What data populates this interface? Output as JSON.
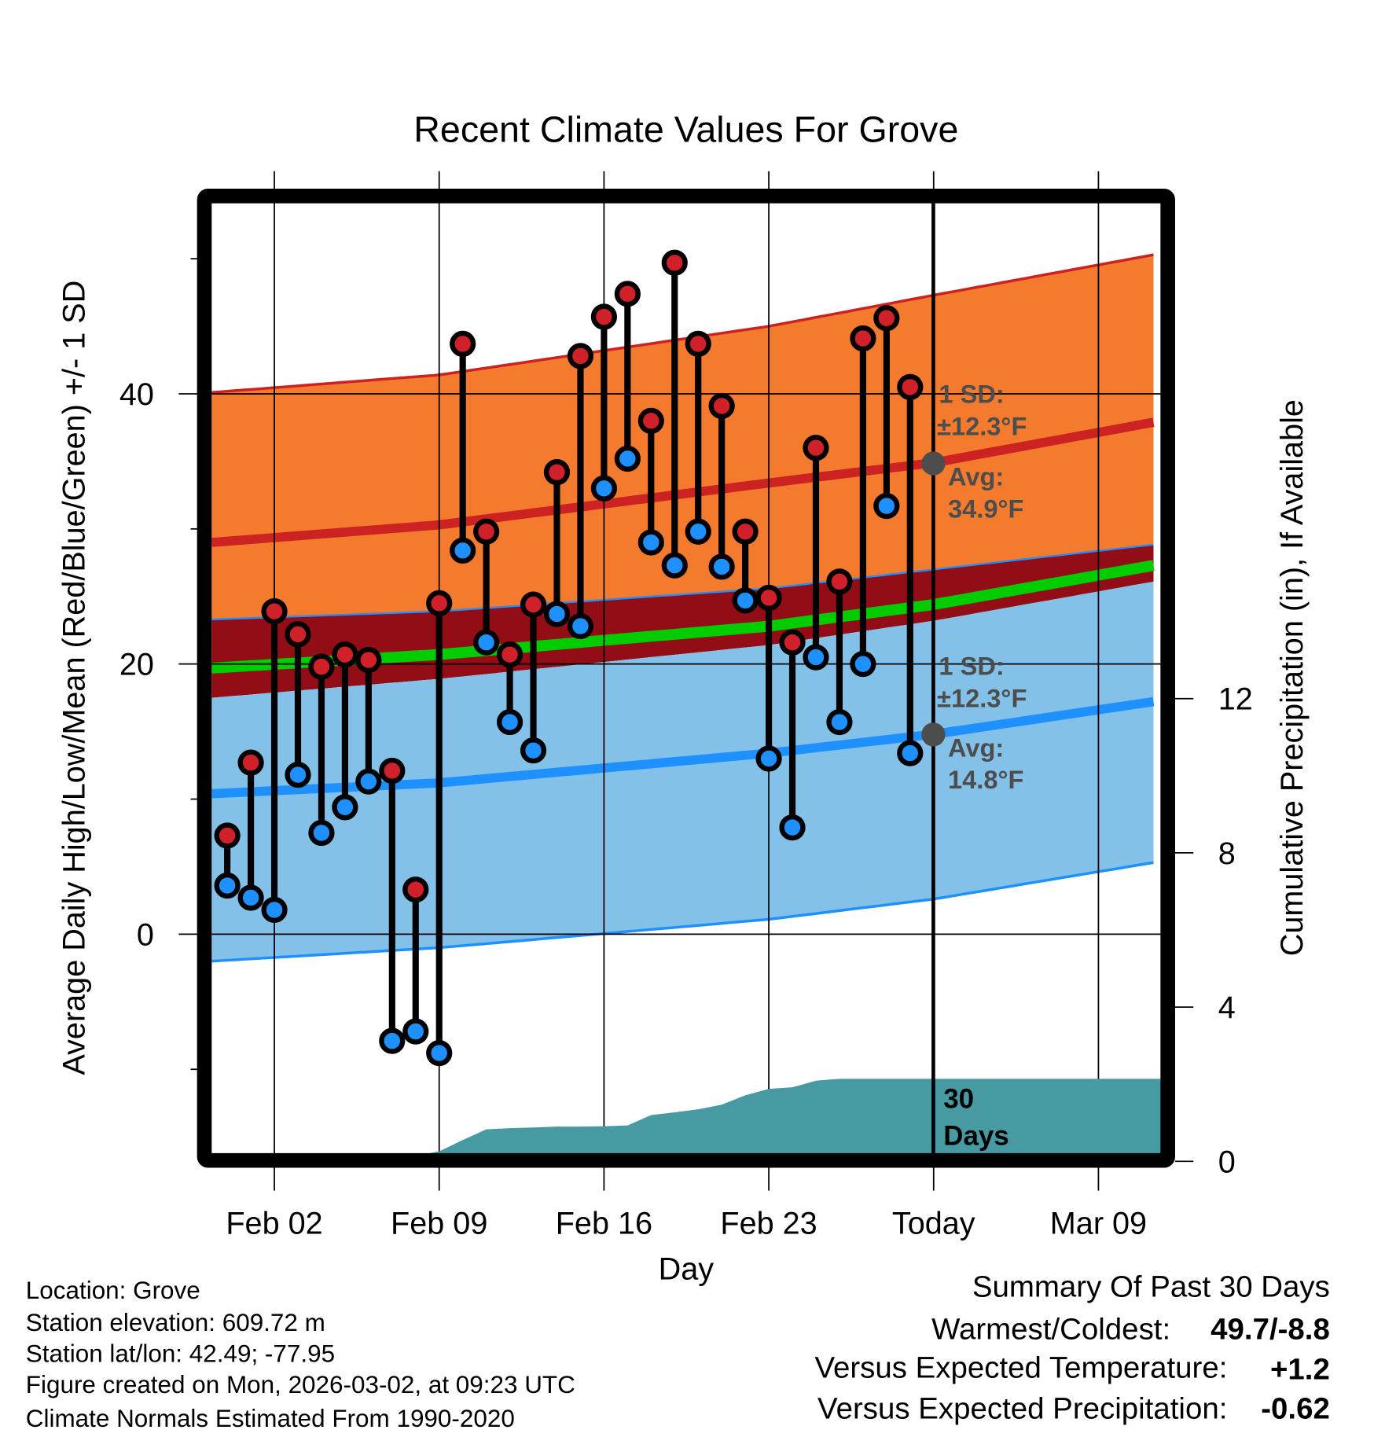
{
  "chart_data": {
    "type": "line",
    "title": "Recent Climate Values For Grove",
    "xlabel": "Day",
    "ylabel": "Average Daily High/Low/Mean (Red/Blue/Green) +/- 1 SD",
    "y2label": "Cumulative Precipitation (in), If Available",
    "day_zero": "Jan 31",
    "xlim_days": [
      -0.66,
      39.67
    ],
    "ylim": [
      -16.3,
      54.1
    ],
    "y2lim": [
      0,
      14.5
    ],
    "grid": true,
    "xticks": [
      {
        "label": "Feb 02",
        "day": 2
      },
      {
        "label": "Feb 09",
        "day": 9
      },
      {
        "label": "Feb 16",
        "day": 16
      },
      {
        "label": "Feb 23",
        "day": 23
      },
      {
        "label": "Today",
        "day": 30
      },
      {
        "label": "Mar 09",
        "day": 37
      }
    ],
    "yticks": [
      0,
      20,
      40
    ],
    "yminor": [
      -10,
      10,
      30,
      50
    ],
    "y2ticks": [
      0,
      4,
      8,
      12
    ],
    "today_day": 30,
    "observed": {
      "days": [
        0,
        1,
        2,
        3,
        4,
        5,
        6,
        7,
        8,
        9,
        10,
        11,
        12,
        13,
        14,
        15,
        16,
        17,
        18,
        19,
        20,
        21,
        22,
        23,
        24,
        25,
        26,
        27,
        28,
        29
      ],
      "high": [
        7.3,
        12.7,
        23.9,
        22.2,
        19.8,
        20.7,
        20.3,
        12.1,
        3.3,
        24.5,
        43.7,
        29.8,
        20.7,
        24.4,
        34.2,
        42.8,
        45.7,
        47.4,
        38.0,
        49.7,
        43.7,
        39.1,
        29.8,
        24.9,
        21.6,
        36.0,
        26.1,
        44.1,
        45.6,
        40.5
      ],
      "low": [
        3.6,
        2.7,
        1.8,
        11.8,
        7.5,
        9.4,
        11.3,
        -7.9,
        -7.2,
        -8.8,
        28.4,
        21.6,
        15.7,
        13.6,
        23.7,
        22.8,
        33.0,
        35.2,
        29.0,
        27.3,
        29.8,
        27.2,
        24.7,
        13.0,
        7.9,
        20.5,
        15.7,
        20.0,
        31.7,
        13.4
      ]
    },
    "normals": {
      "days": [
        -0.66,
        9,
        23,
        30,
        39.67
      ],
      "high_plus_sd": [
        40.1,
        41.4,
        45.0,
        47.3,
        50.4
      ],
      "high_mean": [
        29.0,
        30.3,
        33.4,
        34.9,
        38.0
      ],
      "high_minus_sd": [
        23.3,
        23.9,
        25.6,
        27.0,
        28.9
      ],
      "mean": [
        19.7,
        20.7,
        22.8,
        24.4,
        27.4
      ],
      "low_plus_sd": [
        17.5,
        18.9,
        21.4,
        23.2,
        26.2
      ],
      "low_mean": [
        10.4,
        11.2,
        13.4,
        14.8,
        17.3
      ],
      "low_minus_sd": [
        -2.0,
        -1.0,
        1.1,
        2.6,
        5.4
      ]
    },
    "precip_cumulative": {
      "days": [
        -0.66,
        0,
        1,
        2,
        3,
        4,
        5,
        6,
        7,
        8,
        9,
        10,
        11,
        12,
        13,
        14,
        15,
        16,
        17,
        18,
        19,
        20,
        21,
        22,
        23,
        24,
        25,
        26,
        27,
        28,
        29,
        30,
        39.67
      ],
      "values": [
        0,
        0,
        0,
        0,
        0,
        0,
        0,
        0,
        0.02,
        0.05,
        0.26,
        0.55,
        0.83,
        0.86,
        0.88,
        0.9,
        0.9,
        0.91,
        0.93,
        1.2,
        1.27,
        1.35,
        1.47,
        1.71,
        1.88,
        1.92,
        2.09,
        2.14,
        2.14,
        2.14,
        2.14,
        2.14,
        2.14
      ]
    },
    "annotations": {
      "high_sd_label": "1 SD:",
      "high_sd_value": "±12.3°F",
      "high_avg_label": "Avg:",
      "high_avg_value": "34.9°F",
      "low_sd_label": "1 SD:",
      "low_sd_value": "±12.3°F",
      "low_avg_label": "Avg:",
      "low_avg_value": "14.8°F",
      "period_number": "30",
      "period_unit": "Days"
    },
    "colors": {
      "high_band": "#f47a2e",
      "high_line": "#cc2222",
      "mid_band": "#920d15",
      "mean_line": "#00cc00",
      "low_band": "#83c1e8",
      "low_line": "#1e90ff",
      "precip": "#489aa2",
      "high_point": "#d0202a",
      "low_point": "#1e90ff",
      "annotation": "#4d4d4d"
    }
  },
  "footer": {
    "location": "Location: Grove",
    "elevation": "Station elevation: 609.72 m",
    "latlon": "Station lat/lon: 42.49; -77.95",
    "created": "Figure created on Mon, 2026-03-02, at 09:23 UTC",
    "normals": "Climate Normals Estimated From 1990-2020"
  },
  "summary": {
    "title": "Summary Of Past 30 Days",
    "warmest_coldest_label": "Warmest/Coldest:",
    "warmest_coldest_value": "49.7/-8.8",
    "temp_label": "Versus Expected Temperature:",
    "temp_value": "+1.2",
    "temp_color": "#d0202a",
    "precip_label": "Versus Expected Precipitation:",
    "precip_value": "-0.62",
    "precip_color": "#a0522d"
  }
}
